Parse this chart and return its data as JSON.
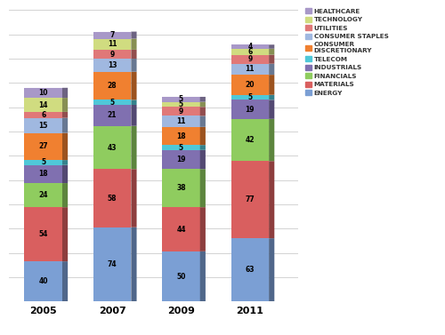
{
  "years": [
    "2005",
    "2007",
    "2009",
    "2011"
  ],
  "categories": [
    "ENERGY",
    "MATERIALS",
    "FINANCIALS",
    "INDUSTRIALS",
    "TELECOM",
    "CONSUMER DISCRETIONARY",
    "CONSUMER STAPLES",
    "UTILITIES",
    "TECHNOLOGY",
    "HEALTHCARE"
  ],
  "colors": [
    "#7b9fd4",
    "#d95f5f",
    "#8fcc5f",
    "#8070b0",
    "#50c8d8",
    "#f08030",
    "#a0b8e0",
    "#e07878",
    "#d0dc80",
    "#a898c8"
  ],
  "values": {
    "ENERGY": [
      40,
      74,
      50,
      63
    ],
    "MATERIALS": [
      54,
      58,
      44,
      77
    ],
    "FINANCIALS": [
      24,
      43,
      38,
      42
    ],
    "INDUSTRIALS": [
      18,
      21,
      19,
      19
    ],
    "TELECOM": [
      5,
      5,
      5,
      5
    ],
    "CONSUMER DISCRETIONARY": [
      27,
      28,
      18,
      20
    ],
    "CONSUMER STAPLES": [
      15,
      13,
      11,
      11
    ],
    "UTILITIES": [
      6,
      9,
      9,
      9
    ],
    "TECHNOLOGY": [
      14,
      11,
      5,
      6
    ],
    "HEALTHCARE": [
      10,
      7,
      5,
      4
    ]
  },
  "legend_colors": {
    "HEALTHCARE": "#a898c8",
    "TECHNOLOGY": "#d0dc80",
    "UTILITIES": "#e07878",
    "CONSUMER STAPLES": "#a0b8e0",
    "CONSUMER DISCRETIONARY": "#f08030",
    "TELECOM": "#50c8d8",
    "INDUSTRIALS": "#8070b0",
    "FINANCIALS": "#8fcc5f",
    "MATERIALS": "#d95f5f",
    "ENERGY": "#7b9fd4"
  },
  "background_color": "#ffffff",
  "bar_width": 0.55,
  "x_positions": [
    0.5,
    1.5,
    2.5,
    3.5
  ]
}
